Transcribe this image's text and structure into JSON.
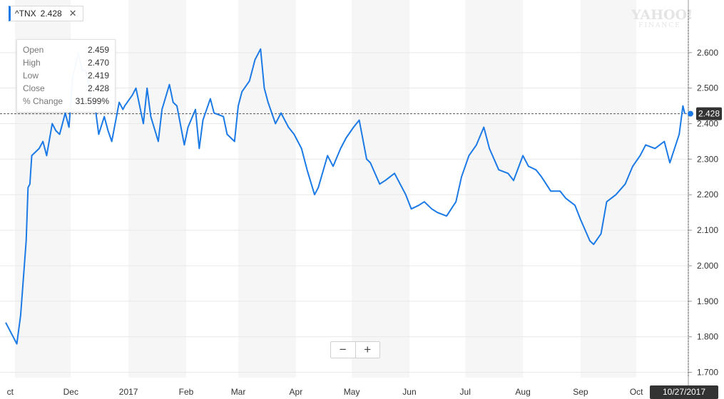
{
  "ticker": {
    "symbol": "^TNX",
    "value": "2.428",
    "close_icon": "close-icon"
  },
  "tooltip": {
    "rows": [
      {
        "label": "Open",
        "value": "2.459"
      },
      {
        "label": "High",
        "value": "2.470"
      },
      {
        "label": "Low",
        "value": "2.419"
      },
      {
        "label": "Close",
        "value": "2.428"
      },
      {
        "label": "% Change",
        "value": "31.599%"
      }
    ]
  },
  "watermark": {
    "line1": "YAHOO!",
    "line2": "FINANCE"
  },
  "zoom": {
    "minus": "−",
    "plus": "+"
  },
  "current_date": "10/27/2017",
  "colors": {
    "line": "#1c7ae6",
    "band": "#f6f6f6",
    "grid": "#e8e8e8",
    "price_label_bg": "#333333"
  },
  "chart_data": {
    "type": "line",
    "title": "",
    "xlabel": "",
    "ylabel": "",
    "ylim": [
      1.685,
      2.72
    ],
    "y_ticks": [
      "2.600",
      "2.500",
      "2.400",
      "2.300",
      "2.200",
      "2.100",
      "2.000",
      "1.900",
      "1.800",
      "1.700"
    ],
    "x_labels": [
      "ct",
      "Dec",
      "2017",
      "Feb",
      "Mar",
      "Apr",
      "May",
      "Jun",
      "Jul",
      "Aug",
      "Sep",
      "Oct"
    ],
    "last_price_label": "2.428",
    "series": [
      {
        "name": "",
        "x": [
          "2016-10-27",
          "2016-10-31",
          "2016-11-02",
          "2016-11-04",
          "2016-11-07",
          "2016-11-08",
          "2016-11-09",
          "2016-11-10",
          "2016-11-14",
          "2016-11-16",
          "2016-11-18",
          "2016-11-21",
          "2016-11-23",
          "2016-11-25",
          "2016-11-28",
          "2016-11-30",
          "2016-12-02",
          "2016-12-05",
          "2016-12-07",
          "2016-12-09",
          "2016-12-12",
          "2016-12-14",
          "2016-12-16",
          "2016-12-19",
          "2016-12-21",
          "2016-12-23",
          "2016-12-27",
          "2016-12-29",
          "2016-12-30",
          "2017-01-03",
          "2017-01-05",
          "2017-01-09",
          "2017-01-11",
          "2017-01-13",
          "2017-01-17",
          "2017-01-19",
          "2017-01-23",
          "2017-01-25",
          "2017-01-27",
          "2017-01-31",
          "2017-02-02",
          "2017-02-06",
          "2017-02-08",
          "2017-02-10",
          "2017-02-14",
          "2017-02-16",
          "2017-02-21",
          "2017-02-23",
          "2017-02-27",
          "2017-03-01",
          "2017-03-03",
          "2017-03-07",
          "2017-03-10",
          "2017-03-13",
          "2017-03-15",
          "2017-03-17",
          "2017-03-21",
          "2017-03-24",
          "2017-03-28",
          "2017-03-31",
          "2017-04-04",
          "2017-04-07",
          "2017-04-11",
          "2017-04-13",
          "2017-04-18",
          "2017-04-21",
          "2017-04-25",
          "2017-04-28",
          "2017-05-02",
          "2017-05-05",
          "2017-05-09",
          "2017-05-11",
          "2017-05-16",
          "2017-05-19",
          "2017-05-24",
          "2017-05-30",
          "2017-06-02",
          "2017-06-06",
          "2017-06-09",
          "2017-06-13",
          "2017-06-16",
          "2017-06-21",
          "2017-06-26",
          "2017-06-29",
          "2017-07-03",
          "2017-07-07",
          "2017-07-11",
          "2017-07-14",
          "2017-07-19",
          "2017-07-24",
          "2017-07-27",
          "2017-08-01",
          "2017-08-04",
          "2017-08-08",
          "2017-08-11",
          "2017-08-16",
          "2017-08-21",
          "2017-08-24",
          "2017-08-29",
          "2017-09-01",
          "2017-09-06",
          "2017-09-08",
          "2017-09-12",
          "2017-09-15",
          "2017-09-20",
          "2017-09-25",
          "2017-09-29",
          "2017-10-03",
          "2017-10-06",
          "2017-10-11",
          "2017-10-16",
          "2017-10-19",
          "2017-10-24",
          "2017-10-26",
          "2017-10-27"
        ],
        "y": [
          1.84,
          1.8,
          1.78,
          1.86,
          2.07,
          2.22,
          2.23,
          2.31,
          2.33,
          2.35,
          2.31,
          2.4,
          2.38,
          2.37,
          2.43,
          2.39,
          2.53,
          2.6,
          2.55,
          2.55,
          2.47,
          2.45,
          2.37,
          2.42,
          2.38,
          2.35,
          2.46,
          2.44,
          2.45,
          2.48,
          2.5,
          2.4,
          2.5,
          2.42,
          2.35,
          2.44,
          2.51,
          2.46,
          2.45,
          2.34,
          2.39,
          2.44,
          2.33,
          2.41,
          2.47,
          2.43,
          2.42,
          2.37,
          2.35,
          2.45,
          2.49,
          2.52,
          2.58,
          2.61,
          2.5,
          2.46,
          2.4,
          2.43,
          2.39,
          2.37,
          2.33,
          2.27,
          2.2,
          2.22,
          2.31,
          2.28,
          2.33,
          2.36,
          2.39,
          2.41,
          2.3,
          2.29,
          2.23,
          2.24,
          2.26,
          2.2,
          2.16,
          2.17,
          2.18,
          2.16,
          2.15,
          2.14,
          2.18,
          2.25,
          2.31,
          2.34,
          2.39,
          2.33,
          2.27,
          2.26,
          2.24,
          2.31,
          2.28,
          2.27,
          2.25,
          2.21,
          2.21,
          2.19,
          2.17,
          2.13,
          2.07,
          2.06,
          2.09,
          2.18,
          2.2,
          2.23,
          2.28,
          2.31,
          2.34,
          2.33,
          2.35,
          2.29,
          2.37,
          2.45,
          2.428
        ]
      }
    ]
  }
}
